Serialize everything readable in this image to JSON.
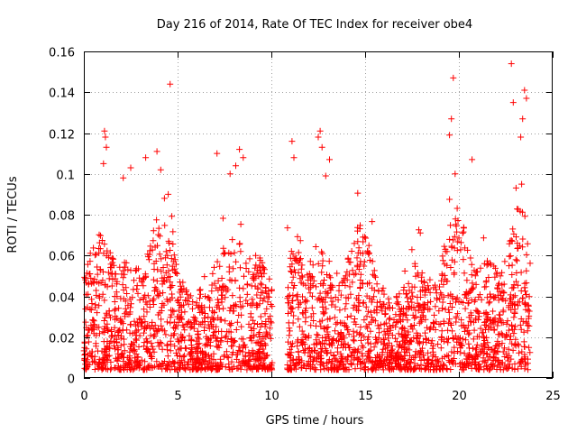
{
  "colors": {
    "series": "#ff0000",
    "grid": "#a0a0a0",
    "axis": "#000000"
  },
  "chart_data": {
    "type": "scatter",
    "title": "Day 216 of 2014, Rate Of TEC Index for receiver obe4",
    "xlabel": "GPS time / hours",
    "ylabel": "ROTI / TECUs",
    "xlim": [
      0,
      25
    ],
    "ylim": [
      0,
      0.16
    ],
    "grid": true,
    "marker": "+",
    "x_ticks": [
      0,
      5,
      10,
      15,
      20,
      25
    ],
    "x_tick_labels": [
      "0",
      "5",
      "10",
      "15",
      "20",
      "25"
    ],
    "y_ticks": [
      0,
      0.02,
      0.04,
      0.06,
      0.08,
      0.1,
      0.12,
      0.14,
      0.16
    ],
    "y_tick_labels": [
      "0",
      "0.02",
      "0.04",
      "0.06",
      "0.08",
      "0.1",
      "0.12",
      "0.14",
      "0.16"
    ],
    "series": [
      {
        "name": "ROTI",
        "segments": [
          [
            0,
            10.05
          ],
          [
            10.85,
            23.8
          ]
        ],
        "peak_points": [
          [
            1.1,
            0.121
          ],
          [
            1.15,
            0.118
          ],
          [
            1.2,
            0.113
          ],
          [
            1.05,
            0.105
          ],
          [
            2.1,
            0.098
          ],
          [
            2.5,
            0.103
          ],
          [
            3.3,
            0.108
          ],
          [
            3.9,
            0.111
          ],
          [
            4.1,
            0.102
          ],
          [
            4.6,
            0.144
          ],
          [
            4.5,
            0.09
          ],
          [
            4.3,
            0.088
          ],
          [
            7.1,
            0.11
          ],
          [
            7.8,
            0.1
          ],
          [
            8.1,
            0.104
          ],
          [
            8.3,
            0.112
          ],
          [
            8.5,
            0.108
          ],
          [
            11.1,
            0.116
          ],
          [
            11.2,
            0.108
          ],
          [
            12.5,
            0.118
          ],
          [
            12.6,
            0.121
          ],
          [
            12.7,
            0.113
          ],
          [
            13.1,
            0.107
          ],
          [
            12.9,
            0.099
          ],
          [
            19.7,
            0.147
          ],
          [
            19.6,
            0.127
          ],
          [
            19.5,
            0.119
          ],
          [
            19.8,
            0.1
          ],
          [
            20.7,
            0.107
          ],
          [
            22.8,
            0.154
          ],
          [
            23.5,
            0.141
          ],
          [
            23.6,
            0.137
          ],
          [
            23.4,
            0.127
          ],
          [
            23.3,
            0.118
          ],
          [
            22.9,
            0.135
          ]
        ]
      }
    ]
  }
}
